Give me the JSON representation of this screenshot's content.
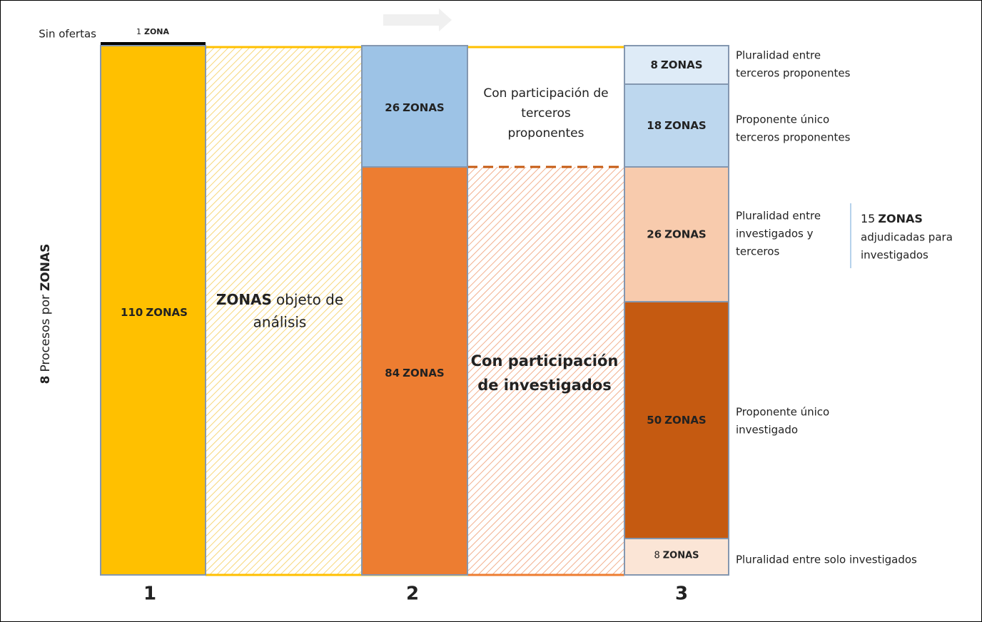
{
  "axis_label": {
    "number": 8,
    "text": "Procesos por",
    "unit": "ZONAS"
  },
  "column_1": {
    "label": "1",
    "no_offers": {
      "label": "Sin ofertas",
      "count": 1,
      "unit": "ZONA"
    },
    "box": {
      "count": 110,
      "unit": "ZONAS"
    }
  },
  "analysis": {
    "unit": "ZONAS",
    "lines": [
      "objeto de",
      "análisis"
    ]
  },
  "column_2": {
    "label": "2",
    "boxes": [
      {
        "count": 26,
        "unit": "ZONAS"
      },
      {
        "count": 84,
        "unit": "ZONAS"
      }
    ]
  },
  "participation": {
    "third_parties": [
      "Con participación de",
      "terceros",
      "proponentes"
    ],
    "investigated": [
      "Con participación",
      "de investigados"
    ]
  },
  "column_3": {
    "label": "3",
    "boxes": [
      {
        "count": 8,
        "unit": "ZONAS",
        "label": [
          "Pluralidad entre",
          "terceros proponentes"
        ]
      },
      {
        "count": 18,
        "unit": "ZONAS",
        "label": [
          "Proponente único",
          "terceros proponentes"
        ]
      },
      {
        "count": 26,
        "unit": "ZONAS",
        "label": [
          "Pluralidad entre",
          "investigados y",
          "terceros"
        ]
      },
      {
        "count": 50,
        "unit": "ZONAS",
        "label": [
          "Proponente único",
          "investigado"
        ]
      },
      {
        "count": 8,
        "unit": "ZONAS",
        "label": [
          "Pluralidad entre solo investigados"
        ]
      }
    ]
  },
  "awarded": {
    "count": 15,
    "unit": "ZONAS",
    "lines": [
      "adjudicadas para",
      "investigados"
    ]
  }
}
